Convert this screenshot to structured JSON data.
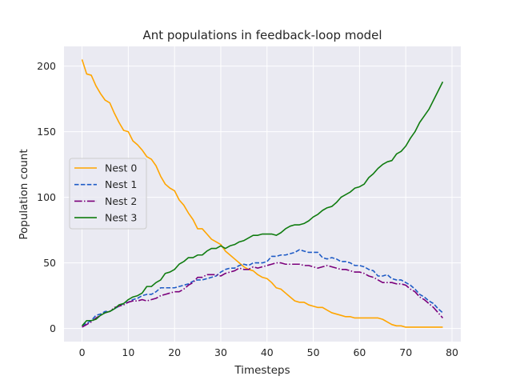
{
  "chart_data": {
    "type": "line",
    "title": "Ant populations in feedback-loop model",
    "xlabel": "Timesteps",
    "ylabel": "Population count",
    "xlim": [
      -3.9,
      81.9
    ],
    "ylim": [
      -10,
      215
    ],
    "xticks": [
      0,
      10,
      20,
      30,
      40,
      50,
      60,
      70,
      80
    ],
    "yticks": [
      0,
      50,
      100,
      150,
      200
    ],
    "grid": true,
    "background": "#eaeaf2",
    "legend_position": "center-left",
    "series": [
      {
        "name": "Nest 0",
        "color": "#ffa500",
        "dash": "solid",
        "x": [
          0,
          1,
          2,
          3,
          4,
          5,
          6,
          7,
          8,
          9,
          10,
          11,
          12,
          13,
          14,
          15,
          16,
          17,
          18,
          19,
          20,
          21,
          22,
          23,
          24,
          25,
          26,
          27,
          28,
          29,
          30,
          31,
          32,
          33,
          34,
          35,
          36,
          37,
          38,
          39,
          40,
          41,
          42,
          43,
          44,
          45,
          46,
          47,
          48,
          49,
          50,
          51,
          52,
          53,
          54,
          55,
          56,
          57,
          58,
          59,
          60,
          61,
          62,
          63,
          64,
          65,
          66,
          67,
          68,
          69,
          70,
          71,
          72,
          73,
          74,
          75,
          76,
          77,
          78
        ],
        "y": [
          205,
          194,
          193,
          185,
          179,
          174,
          172,
          164,
          157,
          151,
          150,
          143,
          140,
          136,
          131,
          129,
          124,
          116,
          110,
          107,
          105,
          98,
          94,
          88,
          83,
          76,
          76,
          72,
          68,
          66,
          64,
          59,
          56,
          53,
          50,
          47,
          45,
          44,
          41,
          39,
          38,
          35,
          31,
          30,
          27,
          24,
          21,
          20,
          20,
          18,
          17,
          16,
          16,
          14,
          12,
          11,
          10,
          9,
          9,
          8,
          8,
          8,
          8,
          8,
          8,
          7,
          5,
          3,
          2,
          2,
          1,
          1,
          1,
          1,
          1,
          1,
          1,
          1,
          1
        ]
      },
      {
        "name": "Nest 1",
        "color": "#1e5bc6",
        "dash": "dashed",
        "x": [
          0,
          1,
          2,
          3,
          4,
          5,
          6,
          7,
          8,
          9,
          10,
          11,
          12,
          13,
          14,
          15,
          16,
          17,
          18,
          19,
          20,
          21,
          22,
          23,
          24,
          25,
          26,
          27,
          28,
          29,
          30,
          31,
          32,
          33,
          34,
          35,
          36,
          37,
          38,
          39,
          40,
          41,
          42,
          43,
          44,
          45,
          46,
          47,
          48,
          49,
          50,
          51,
          52,
          53,
          54,
          55,
          56,
          57,
          58,
          59,
          60,
          61,
          62,
          63,
          64,
          65,
          66,
          67,
          68,
          69,
          70,
          71,
          72,
          73,
          74,
          75,
          76,
          77,
          78
        ],
        "y": [
          2,
          4,
          6,
          10,
          11,
          13,
          13,
          15,
          17,
          19,
          20,
          22,
          23,
          25,
          26,
          26,
          28,
          31,
          31,
          31,
          31,
          32,
          33,
          34,
          36,
          37,
          37,
          38,
          39,
          40,
          43,
          45,
          46,
          46,
          48,
          49,
          48,
          50,
          50,
          50,
          51,
          55,
          55,
          56,
          56,
          57,
          58,
          60,
          59,
          58,
          58,
          58,
          54,
          53,
          54,
          53,
          51,
          51,
          50,
          48,
          48,
          47,
          45,
          44,
          40,
          40,
          41,
          38,
          37,
          37,
          35,
          33,
          30,
          26,
          24,
          21,
          19,
          15,
          12
        ]
      },
      {
        "name": "Nest 2",
        "color": "#7b007b",
        "dash": "dashdot",
        "x": [
          0,
          1,
          2,
          3,
          4,
          5,
          6,
          7,
          8,
          9,
          10,
          11,
          12,
          13,
          14,
          15,
          16,
          17,
          18,
          19,
          20,
          21,
          22,
          23,
          24,
          25,
          26,
          27,
          28,
          29,
          30,
          31,
          32,
          33,
          34,
          35,
          36,
          37,
          38,
          39,
          40,
          41,
          42,
          43,
          44,
          45,
          46,
          47,
          48,
          49,
          50,
          51,
          52,
          53,
          54,
          55,
          56,
          57,
          58,
          59,
          60,
          61,
          62,
          63,
          64,
          65,
          66,
          67,
          68,
          69,
          70,
          71,
          72,
          73,
          74,
          75,
          76,
          77,
          78
        ],
        "y": [
          1,
          3,
          5,
          8,
          10,
          12,
          13,
          16,
          17,
          18,
          20,
          21,
          21,
          22,
          21,
          22,
          23,
          25,
          26,
          27,
          28,
          28,
          30,
          33,
          35,
          39,
          39,
          41,
          41,
          41,
          40,
          42,
          43,
          44,
          46,
          45,
          45,
          47,
          46,
          47,
          48,
          49,
          50,
          50,
          49,
          49,
          49,
          49,
          48,
          48,
          47,
          46,
          47,
          48,
          47,
          46,
          45,
          45,
          44,
          43,
          43,
          42,
          40,
          39,
          37,
          35,
          35,
          35,
          34,
          34,
          33,
          30,
          28,
          24,
          22,
          19,
          16,
          12,
          8
        ]
      },
      {
        "name": "Nest 3",
        "color": "#107c10",
        "dash": "solid",
        "x": [
          0,
          1,
          2,
          3,
          4,
          5,
          6,
          7,
          8,
          9,
          10,
          11,
          12,
          13,
          14,
          15,
          16,
          17,
          18,
          19,
          20,
          21,
          22,
          23,
          24,
          25,
          26,
          27,
          28,
          29,
          30,
          31,
          32,
          33,
          34,
          35,
          36,
          37,
          38,
          39,
          40,
          41,
          42,
          43,
          44,
          45,
          46,
          47,
          48,
          49,
          50,
          51,
          52,
          53,
          54,
          55,
          56,
          57,
          58,
          59,
          60,
          61,
          62,
          63,
          64,
          65,
          66,
          67,
          68,
          69,
          70,
          71,
          72,
          73,
          74,
          75,
          76,
          77,
          78
        ],
        "y": [
          2,
          6,
          6,
          7,
          10,
          12,
          13,
          15,
          18,
          19,
          22,
          24,
          25,
          27,
          32,
          32,
          35,
          37,
          42,
          43,
          45,
          49,
          51,
          54,
          54,
          56,
          56,
          59,
          61,
          61,
          63,
          61,
          63,
          64,
          66,
          67,
          69,
          71,
          71,
          72,
          72,
          72,
          71,
          73,
          76,
          78,
          79,
          79,
          80,
          82,
          85,
          87,
          90,
          92,
          93,
          96,
          100,
          102,
          104,
          107,
          108,
          110,
          115,
          118,
          122,
          125,
          127,
          128,
          133,
          135,
          139,
          145,
          150,
          157,
          162,
          167,
          174,
          181,
          188
        ]
      }
    ]
  }
}
